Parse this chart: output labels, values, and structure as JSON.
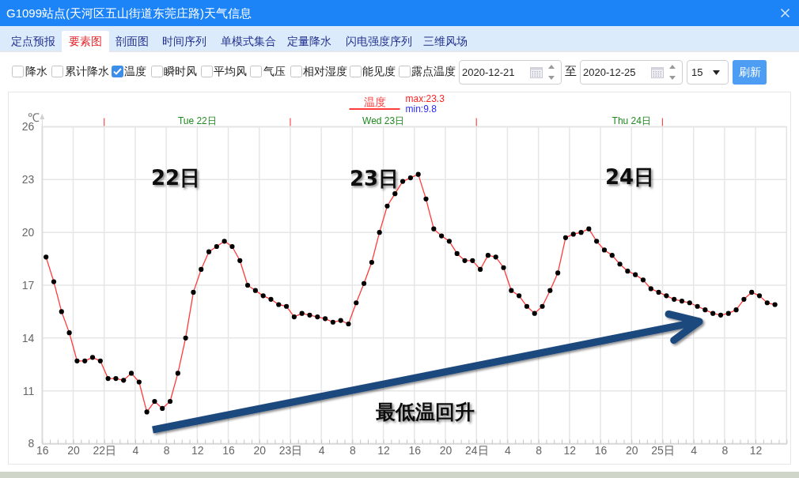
{
  "chart_data": {
    "type": "line",
    "title": "G1099站点(天河区五山街道东莞庄路)天气信息",
    "ylabel": "℃",
    "x": [
      "2020-12-21T16:30",
      "2020-12-21T17:30",
      "2020-12-21T18:30",
      "2020-12-21T19:30",
      "2020-12-21T20:30",
      "2020-12-21T21:30",
      "2020-12-21T22:30",
      "2020-12-21T23:30",
      "2020-12-22T00:30",
      "2020-12-22T01:30",
      "2020-12-22T02:30",
      "2020-12-22T03:30",
      "2020-12-22T04:30",
      "2020-12-22T05:30",
      "2020-12-22T06:30",
      "2020-12-22T07:30",
      "2020-12-22T08:30",
      "2020-12-22T09:30",
      "2020-12-22T10:30",
      "2020-12-22T11:30",
      "2020-12-22T12:30",
      "2020-12-22T13:30",
      "2020-12-22T14:30",
      "2020-12-22T15:30",
      "2020-12-22T16:30",
      "2020-12-22T17:30",
      "2020-12-22T18:30",
      "2020-12-22T19:30",
      "2020-12-22T20:30",
      "2020-12-22T21:30",
      "2020-12-22T22:30",
      "2020-12-22T23:30",
      "2020-12-23T00:30",
      "2020-12-23T01:30",
      "2020-12-23T02:30",
      "2020-12-23T03:30",
      "2020-12-23T04:30",
      "2020-12-23T05:30",
      "2020-12-23T06:30",
      "2020-12-23T07:30",
      "2020-12-23T08:30",
      "2020-12-23T09:30",
      "2020-12-23T10:30",
      "2020-12-23T11:30",
      "2020-12-23T12:30",
      "2020-12-23T13:30",
      "2020-12-23T14:30",
      "2020-12-23T15:30",
      "2020-12-23T16:30",
      "2020-12-23T17:30",
      "2020-12-23T18:30",
      "2020-12-23T19:30",
      "2020-12-23T20:30",
      "2020-12-23T21:30",
      "2020-12-23T22:30",
      "2020-12-23T23:30",
      "2020-12-24T00:30",
      "2020-12-24T01:30",
      "2020-12-24T02:30",
      "2020-12-24T03:30",
      "2020-12-24T04:30",
      "2020-12-24T05:30",
      "2020-12-24T06:30",
      "2020-12-24T07:30",
      "2020-12-24T08:30",
      "2020-12-24T09:30",
      "2020-12-24T10:30",
      "2020-12-24T11:30",
      "2020-12-24T12:30",
      "2020-12-24T13:30",
      "2020-12-24T14:30",
      "2020-12-24T15:30",
      "2020-12-24T16:30",
      "2020-12-24T17:30",
      "2020-12-24T18:30",
      "2020-12-24T19:30",
      "2020-12-24T20:30",
      "2020-12-24T21:30",
      "2020-12-24T22:30",
      "2020-12-24T23:30",
      "2020-12-25T00:30",
      "2020-12-25T01:30",
      "2020-12-25T02:30",
      "2020-12-25T03:30",
      "2020-12-25T04:30",
      "2020-12-25T05:30",
      "2020-12-25T06:30",
      "2020-12-25T07:30",
      "2020-12-25T08:30",
      "2020-12-25T09:30",
      "2020-12-25T10:30",
      "2020-12-25T11:30",
      "2020-12-25T12:30",
      "2020-12-25T13:30",
      "2020-12-25T14:30"
    ],
    "series": [
      {
        "name": "温度",
        "color": "#ff3b3b",
        "values": [
          18.6,
          17.2,
          15.5,
          14.3,
          12.7,
          12.7,
          12.9,
          12.7,
          11.7,
          11.7,
          11.6,
          12.0,
          11.5,
          9.8,
          10.4,
          10.0,
          10.4,
          12.0,
          14.0,
          16.6,
          17.9,
          18.9,
          19.2,
          19.5,
          19.2,
          18.4,
          17.0,
          16.7,
          16.4,
          16.2,
          15.9,
          15.8,
          15.2,
          15.4,
          15.3,
          15.2,
          15.1,
          14.9,
          15.0,
          14.8,
          16.0,
          17.1,
          18.3,
          20.0,
          21.5,
          22.2,
          22.9,
          23.1,
          23.3,
          21.9,
          20.2,
          19.8,
          19.5,
          18.8,
          18.4,
          18.4,
          17.9,
          18.7,
          18.6,
          18.0,
          16.7,
          16.4,
          15.8,
          15.4,
          15.8,
          16.7,
          17.7,
          19.7,
          19.9,
          20.0,
          20.2,
          19.5,
          19.0,
          18.7,
          18.2,
          17.8,
          17.6,
          17.3,
          16.8,
          16.6,
          16.4,
          16.2,
          16.1,
          16.0,
          15.8,
          15.6,
          15.4,
          15.3,
          15.4,
          15.6,
          16.2,
          16.6,
          16.4,
          16.0,
          15.9
        ]
      }
    ],
    "xlim": [
      "2020-12-21T16:00",
      "2020-12-25T16:00"
    ],
    "xticks": [
      {
        "value": "2020-12-21T16:00",
        "label": "16"
      },
      {
        "value": "2020-12-21T17:00",
        "label": null
      },
      {
        "value": "2020-12-21T18:00",
        "label": null
      },
      {
        "value": "2020-12-21T19:00",
        "label": null
      },
      {
        "value": "2020-12-21T20:00",
        "label": "20"
      },
      {
        "value": "2020-12-21T21:00",
        "label": null
      },
      {
        "value": "2020-12-21T22:00",
        "label": null
      },
      {
        "value": "2020-12-21T23:00",
        "label": null
      },
      {
        "value": "2020-12-22T00:00",
        "label": "22日"
      },
      {
        "value": "2020-12-22T01:00",
        "label": null
      },
      {
        "value": "2020-12-22T02:00",
        "label": null
      },
      {
        "value": "2020-12-22T03:00",
        "label": null
      },
      {
        "value": "2020-12-22T04:00",
        "label": "4"
      },
      {
        "value": "2020-12-22T05:00",
        "label": null
      },
      {
        "value": "2020-12-22T06:00",
        "label": null
      },
      {
        "value": "2020-12-22T07:00",
        "label": null
      },
      {
        "value": "2020-12-22T08:00",
        "label": "8"
      },
      {
        "value": "2020-12-22T09:00",
        "label": null
      },
      {
        "value": "2020-12-22T10:00",
        "label": null
      },
      {
        "value": "2020-12-22T11:00",
        "label": null
      },
      {
        "value": "2020-12-22T12:00",
        "label": "12"
      },
      {
        "value": "2020-12-22T13:00",
        "label": null
      },
      {
        "value": "2020-12-22T14:00",
        "label": null
      },
      {
        "value": "2020-12-22T15:00",
        "label": null
      },
      {
        "value": "2020-12-22T16:00",
        "label": "16"
      },
      {
        "value": "2020-12-22T17:00",
        "label": null
      },
      {
        "value": "2020-12-22T18:00",
        "label": null
      },
      {
        "value": "2020-12-22T19:00",
        "label": null
      },
      {
        "value": "2020-12-22T20:00",
        "label": "20"
      },
      {
        "value": "2020-12-22T21:00",
        "label": null
      },
      {
        "value": "2020-12-22T22:00",
        "label": null
      },
      {
        "value": "2020-12-22T23:00",
        "label": null
      },
      {
        "value": "2020-12-23T00:00",
        "label": "23日"
      },
      {
        "value": "2020-12-23T01:00",
        "label": null
      },
      {
        "value": "2020-12-23T02:00",
        "label": null
      },
      {
        "value": "2020-12-23T03:00",
        "label": null
      },
      {
        "value": "2020-12-23T04:00",
        "label": "4"
      },
      {
        "value": "2020-12-23T05:00",
        "label": null
      },
      {
        "value": "2020-12-23T06:00",
        "label": null
      },
      {
        "value": "2020-12-23T07:00",
        "label": null
      },
      {
        "value": "2020-12-23T08:00",
        "label": "8"
      },
      {
        "value": "2020-12-23T09:00",
        "label": null
      },
      {
        "value": "2020-12-23T10:00",
        "label": null
      },
      {
        "value": "2020-12-23T11:00",
        "label": null
      },
      {
        "value": "2020-12-23T12:00",
        "label": "12"
      },
      {
        "value": "2020-12-23T13:00",
        "label": null
      },
      {
        "value": "2020-12-23T14:00",
        "label": null
      },
      {
        "value": "2020-12-23T15:00",
        "label": null
      },
      {
        "value": "2020-12-23T16:00",
        "label": "16"
      },
      {
        "value": "2020-12-23T17:00",
        "label": null
      },
      {
        "value": "2020-12-23T18:00",
        "label": null
      },
      {
        "value": "2020-12-23T19:00",
        "label": null
      },
      {
        "value": "2020-12-23T20:00",
        "label": "20"
      },
      {
        "value": "2020-12-23T21:00",
        "label": null
      },
      {
        "value": "2020-12-23T22:00",
        "label": null
      },
      {
        "value": "2020-12-23T23:00",
        "label": null
      },
      {
        "value": "2020-12-24T00:00",
        "label": "24日"
      },
      {
        "value": "2020-12-24T01:00",
        "label": null
      },
      {
        "value": "2020-12-24T02:00",
        "label": null
      },
      {
        "value": "2020-12-24T03:00",
        "label": null
      },
      {
        "value": "2020-12-24T04:00",
        "label": "4"
      },
      {
        "value": "2020-12-24T05:00",
        "label": null
      },
      {
        "value": "2020-12-24T06:00",
        "label": null
      },
      {
        "value": "2020-12-24T07:00",
        "label": null
      },
      {
        "value": "2020-12-24T08:00",
        "label": "8"
      },
      {
        "value": "2020-12-24T09:00",
        "label": null
      },
      {
        "value": "2020-12-24T10:00",
        "label": null
      },
      {
        "value": "2020-12-24T11:00",
        "label": null
      },
      {
        "value": "2020-12-24T12:00",
        "label": "12"
      },
      {
        "value": "2020-12-24T13:00",
        "label": null
      },
      {
        "value": "2020-12-24T14:00",
        "label": null
      },
      {
        "value": "2020-12-24T15:00",
        "label": null
      },
      {
        "value": "2020-12-24T16:00",
        "label": "16"
      },
      {
        "value": "2020-12-24T17:00",
        "label": null
      },
      {
        "value": "2020-12-24T18:00",
        "label": null
      },
      {
        "value": "2020-12-24T19:00",
        "label": null
      },
      {
        "value": "2020-12-24T20:00",
        "label": "20"
      },
      {
        "value": "2020-12-24T21:00",
        "label": null
      },
      {
        "value": "2020-12-24T22:00",
        "label": null
      },
      {
        "value": "2020-12-24T23:00",
        "label": null
      },
      {
        "value": "2020-12-25T00:00",
        "label": "25日"
      },
      {
        "value": "2020-12-25T01:00",
        "label": null
      },
      {
        "value": "2020-12-25T02:00",
        "label": null
      },
      {
        "value": "2020-12-25T03:00",
        "label": null
      },
      {
        "value": "2020-12-25T04:00",
        "label": "4"
      },
      {
        "value": "2020-12-25T05:00",
        "label": null
      },
      {
        "value": "2020-12-25T06:00",
        "label": null
      },
      {
        "value": "2020-12-25T07:00",
        "label": null
      },
      {
        "value": "2020-12-25T08:00",
        "label": "8"
      },
      {
        "value": "2020-12-25T09:00",
        "label": null
      },
      {
        "value": "2020-12-25T10:00",
        "label": null
      },
      {
        "value": "2020-12-25T11:00",
        "label": null
      },
      {
        "value": "2020-12-25T12:00",
        "label": "12"
      },
      {
        "value": "2020-12-25T13:00",
        "label": null
      },
      {
        "value": "2020-12-25T14:00",
        "label": null
      },
      {
        "value": "2020-12-25T15:00",
        "label": null
      },
      {
        "value": "2020-12-25T16:00",
        "label": null
      }
    ],
    "x2lim": [
      "2020-12-21T16:00",
      "2020-12-25T16:00"
    ],
    "x2ticks": [
      {
        "value": "2020-12-22T00:00",
        "label": null
      },
      {
        "value": "2020-12-22T12:00",
        "label": "Tue 22日"
      },
      {
        "value": "2020-12-23T00:00",
        "label": null
      },
      {
        "value": "2020-12-23T12:00",
        "label": "Wed 23日"
      },
      {
        "value": "2020-12-24T00:00",
        "label": null
      },
      {
        "value": "2020-12-24T20:00",
        "label": "Thu 24日"
      },
      {
        "value": "2020-12-25T00:00",
        "label": null
      }
    ],
    "ylim": [
      8,
      26
    ],
    "yticks": [
      8,
      11,
      14,
      17,
      20,
      23,
      26
    ],
    "grid": true,
    "legend": "top",
    "marker": "circle",
    "line_style": "solid",
    "annotations": [
      "定点预报",
      "要素图",
      "剖面图",
      "时间序列",
      "单模式集合",
      "定量降水",
      "闪电强度序列",
      "三维风场",
      "降水",
      "累计降水",
      "温度",
      "瞬时风",
      "平均风",
      "气压",
      "相对湿度",
      "能见度",
      "露点温度",
      "2020-12-21",
      "至",
      "2020-12-25",
      "15",
      "刷新",
      "max:23.3",
      "min:9.8",
      "22日",
      "23日",
      "24日",
      "最低温回升"
    ]
  }
}
